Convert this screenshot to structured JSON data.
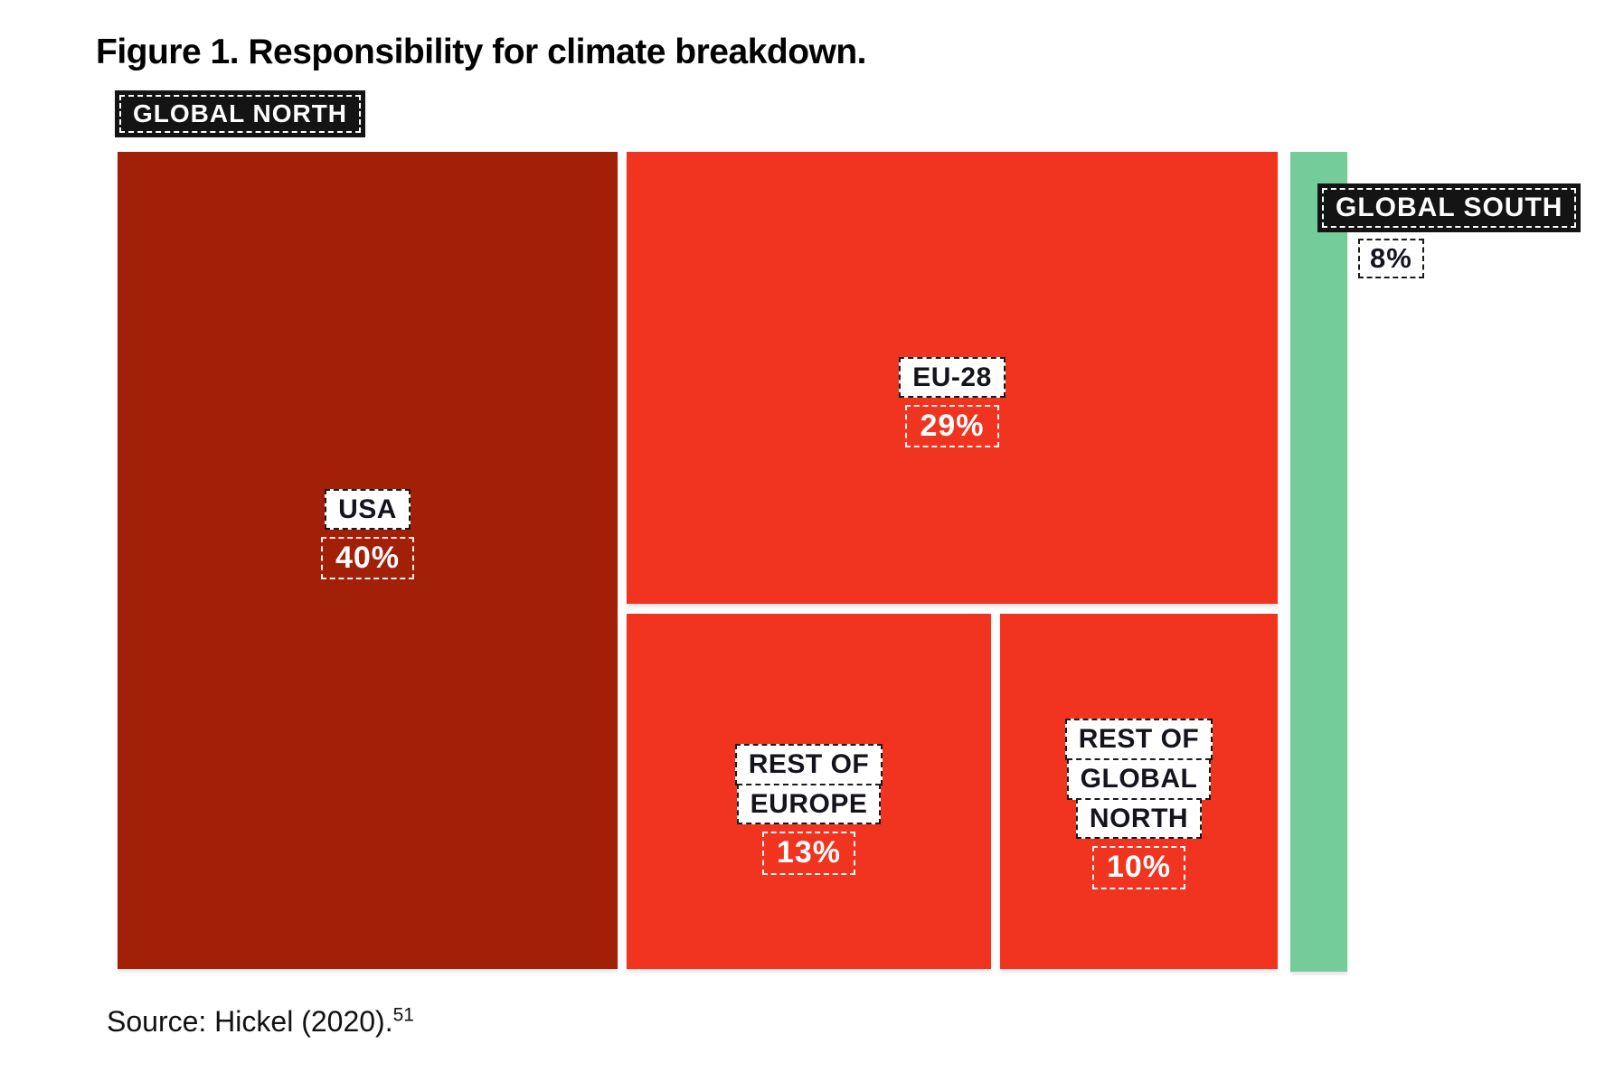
{
  "page": {
    "title": "Figure 1. Responsibility for climate breakdown.",
    "source_text": "Source: Hickel (2020).",
    "source_footnote": "51"
  },
  "badges": {
    "global_north": "GLOBAL NORTH",
    "global_south": "GLOBAL SOUTH"
  },
  "tiles": {
    "usa": {
      "label": "USA",
      "pct": "40%"
    },
    "eu28": {
      "label": "EU-28",
      "pct": "29%"
    },
    "rest_of_europe": {
      "lines": [
        "REST OF",
        "EUROPE"
      ],
      "pct": "13%"
    },
    "rest_of_global_north": {
      "lines": [
        "REST OF",
        "GLOBAL",
        "NORTH"
      ],
      "pct": "10%"
    },
    "global_south": {
      "pct": "8%"
    }
  },
  "colors": {
    "usa-red": "#A32008",
    "north-red": "#F03420",
    "south-green": "#74CC9B",
    "badge-black": "#141414",
    "label-text": "#14141E"
  },
  "chart_data": {
    "type": "treemap",
    "title": "Figure 1. Responsibility for climate breakdown.",
    "unit": "percent of responsibility",
    "groups": [
      {
        "name": "GLOBAL NORTH",
        "share_pct": 92,
        "items": [
          {
            "label": "USA",
            "value": 40
          },
          {
            "label": "EU-28",
            "value": 29
          },
          {
            "label": "REST OF EUROPE",
            "value": 13
          },
          {
            "label": "REST OF GLOBAL NORTH",
            "value": 10
          }
        ]
      },
      {
        "name": "GLOBAL SOUTH",
        "share_pct": 8,
        "items": [
          {
            "label": "GLOBAL SOUTH",
            "value": 8
          }
        ]
      }
    ],
    "legend_position": "none",
    "source": "Source: Hickel (2020)."
  }
}
